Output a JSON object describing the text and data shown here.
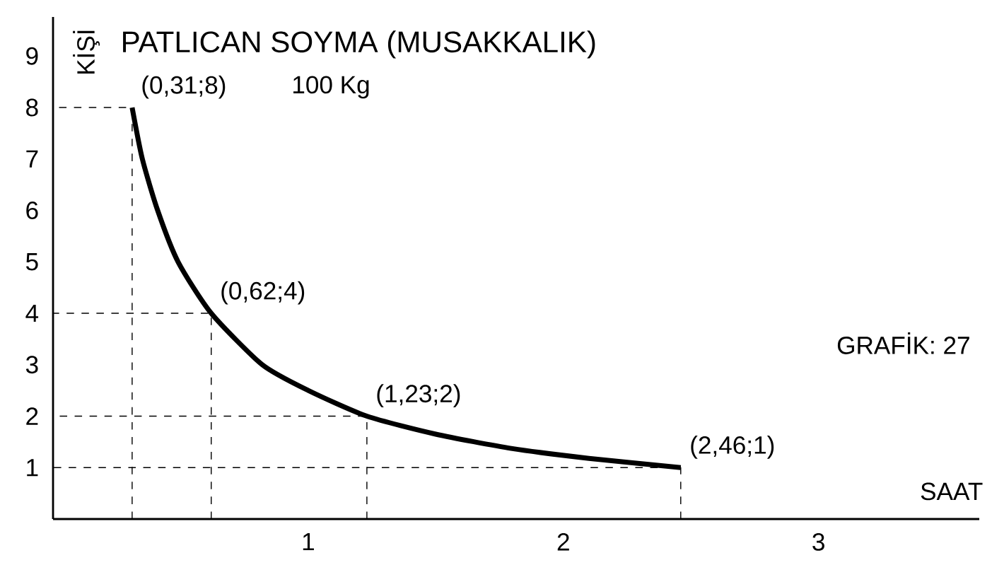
{
  "chart_data": {
    "type": "line",
    "title": "PATLICAN SOYMA (MUSAKKALIK)",
    "subtitle": "100 Kg",
    "xlabel": "SAAT",
    "ylabel": "KİŞİ",
    "x": [
      0.31,
      0.35,
      0.41,
      0.49,
      0.62,
      0.82,
      1.0,
      1.23,
      1.5,
      1.8,
      2.1,
      2.46
    ],
    "series": [
      {
        "color": "#000000",
        "values": [
          8,
          7,
          6,
          5,
          4,
          3,
          2.5,
          2,
          1.65,
          1.37,
          1.18,
          1
        ]
      },
      {
        "color": "#000000",
        "line_style": "dashed",
        "x": [
          0.31,
          0.31,
          0
        ],
        "values": [
          0,
          8,
          8
        ]
      },
      {
        "color": "#000000",
        "line_style": "dashed",
        "x": [
          0.62,
          0.62,
          0
        ],
        "values": [
          0,
          4,
          4
        ]
      },
      {
        "color": "#000000",
        "line_style": "dashed",
        "x": [
          1.23,
          1.23,
          0
        ],
        "values": [
          0,
          2,
          2
        ]
      },
      {
        "color": "#000000",
        "line_style": "dashed",
        "x": [
          2.46,
          2.46,
          0
        ],
        "values": [
          0,
          1,
          1
        ]
      }
    ],
    "xlim": [
      0,
      3.63
    ],
    "ylim": [
      0,
      9.76
    ],
    "xticks": [
      1,
      2,
      3
    ],
    "yticks": [
      1,
      2,
      3,
      4,
      5,
      6,
      7,
      8,
      9
    ],
    "grid": false,
    "marker": "none",
    "line_style": "solid",
    "annotations": [
      {
        "text": "(0,31;8)",
        "x": 0.31,
        "y": 8
      },
      {
        "text": "(0,62;4)",
        "x": 0.62,
        "y": 4
      },
      {
        "text": "(1,23;2)",
        "x": 1.23,
        "y": 2
      },
      {
        "text": "(2,46;1)",
        "x": 2.46,
        "y": 1
      },
      "GRAFİK: 27"
    ]
  }
}
